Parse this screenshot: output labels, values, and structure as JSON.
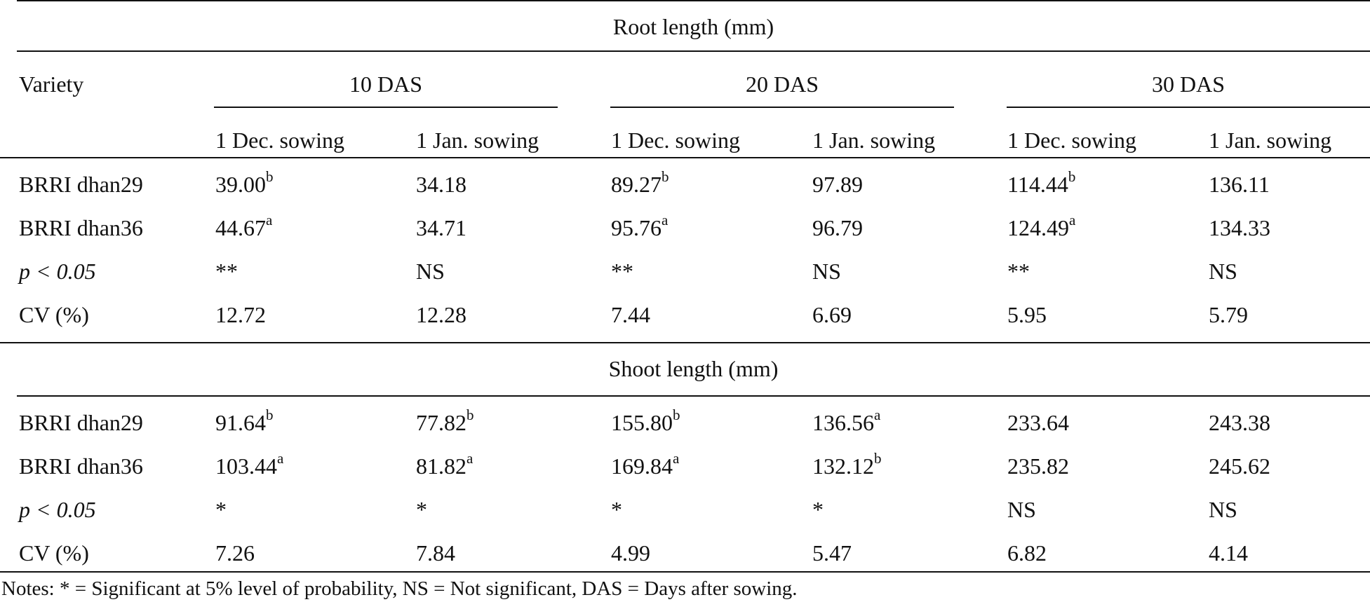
{
  "table": {
    "headers": {
      "variety": "Variety",
      "root_section": "Root length (mm)",
      "shoot_section": "Shoot length (mm)",
      "das_groups": [
        "10 DAS",
        "20 DAS",
        "30 DAS"
      ],
      "sowings": [
        "1 Dec. sowing",
        "1 Jan. sowing",
        "1 Dec. sowing",
        "1 Jan. sowing",
        "1 Dec. sowing",
        "1 Jan. sowing"
      ]
    },
    "root_rows": [
      {
        "label": "BRRI dhan29",
        "cells": [
          {
            "v": "39.00",
            "s": "b"
          },
          {
            "v": "34.18",
            "s": ""
          },
          {
            "v": "89.27",
            "s": "b"
          },
          {
            "v": "97.89",
            "s": ""
          },
          {
            "v": "114.44",
            "s": "b"
          },
          {
            "v": "136.11",
            "s": ""
          }
        ]
      },
      {
        "label": "BRRI dhan36",
        "cells": [
          {
            "v": "44.67",
            "s": "a"
          },
          {
            "v": "34.71",
            "s": ""
          },
          {
            "v": "95.76",
            "s": "a"
          },
          {
            "v": "96.79",
            "s": ""
          },
          {
            "v": "124.49",
            "s": "a"
          },
          {
            "v": "134.33",
            "s": ""
          }
        ]
      },
      {
        "label": "p < 0.05",
        "cells": [
          {
            "v": "**",
            "s": ""
          },
          {
            "v": "NS",
            "s": ""
          },
          {
            "v": "**",
            "s": ""
          },
          {
            "v": "NS",
            "s": ""
          },
          {
            "v": "**",
            "s": ""
          },
          {
            "v": "NS",
            "s": ""
          }
        ]
      },
      {
        "label": "CV (%)",
        "cells": [
          {
            "v": "12.72",
            "s": ""
          },
          {
            "v": "12.28",
            "s": ""
          },
          {
            "v": "7.44",
            "s": ""
          },
          {
            "v": "6.69",
            "s": ""
          },
          {
            "v": "5.95",
            "s": ""
          },
          {
            "v": "5.79",
            "s": ""
          }
        ]
      }
    ],
    "shoot_rows": [
      {
        "label": "BRRI dhan29",
        "cells": [
          {
            "v": "91.64",
            "s": "b"
          },
          {
            "v": "77.82",
            "s": "b"
          },
          {
            "v": "155.80",
            "s": "b"
          },
          {
            "v": "136.56",
            "s": "a"
          },
          {
            "v": "233.64",
            "s": ""
          },
          {
            "v": "243.38",
            "s": ""
          }
        ]
      },
      {
        "label": "BRRI dhan36",
        "cells": [
          {
            "v": "103.44",
            "s": "a"
          },
          {
            "v": "81.82",
            "s": "a"
          },
          {
            "v": "169.84",
            "s": "a"
          },
          {
            "v": "132.12",
            "s": "b"
          },
          {
            "v": "235.82",
            "s": ""
          },
          {
            "v": "245.62",
            "s": ""
          }
        ]
      },
      {
        "label": "p < 0.05",
        "cells": [
          {
            "v": "*",
            "s": ""
          },
          {
            "v": "*",
            "s": ""
          },
          {
            "v": "*",
            "s": ""
          },
          {
            "v": "*",
            "s": ""
          },
          {
            "v": "NS",
            "s": ""
          },
          {
            "v": "NS",
            "s": ""
          }
        ]
      },
      {
        "label": "CV (%)",
        "cells": [
          {
            "v": "7.26",
            "s": ""
          },
          {
            "v": "7.84",
            "s": ""
          },
          {
            "v": "4.99",
            "s": ""
          },
          {
            "v": "5.47",
            "s": ""
          },
          {
            "v": "6.82",
            "s": ""
          },
          {
            "v": "4.14",
            "s": ""
          }
        ]
      }
    ]
  },
  "notes": "Notes: * = Significant at 5% level of probability, NS = Not significant, DAS = Days after sowing."
}
